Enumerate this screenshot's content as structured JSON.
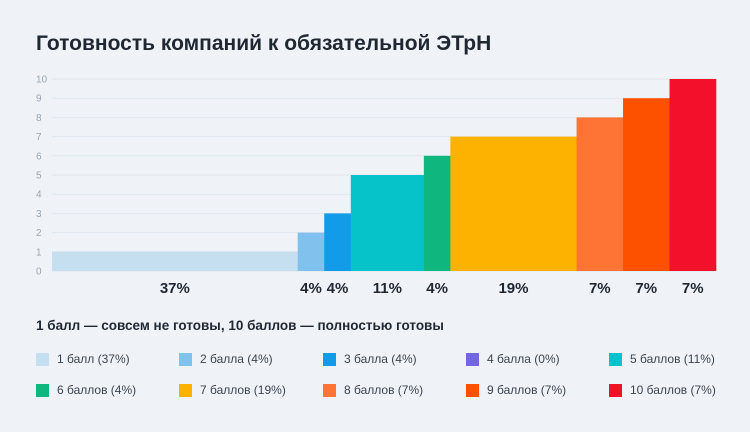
{
  "title": "Готовность компаний к обязательной ЭТрН",
  "note": "1 балл — совсем не готовы, 10 баллов — полностью готовы",
  "chart_data": {
    "type": "bar",
    "subtype": "variable-width (marimekko) bars",
    "ylim": [
      0,
      10
    ],
    "yticks": [
      "0",
      "1",
      "2",
      "3",
      "4",
      "5",
      "6",
      "7",
      "8",
      "9",
      "10"
    ],
    "grid": true,
    "legend_position": "bottom",
    "bars": [
      {
        "score": 1,
        "share": 37,
        "label": "37%",
        "color": "#c5def0"
      },
      {
        "score": 2,
        "share": 4,
        "label": "4%",
        "color": "#80c1ee"
      },
      {
        "score": 3,
        "share": 4,
        "label": "4%",
        "color": "#119be8"
      },
      {
        "score": 4,
        "share": 0,
        "label": "",
        "color": "#7267e0"
      },
      {
        "score": 5,
        "share": 11,
        "label": "11%",
        "color": "#05c3c8"
      },
      {
        "score": 6,
        "share": 4,
        "label": "4%",
        "color": "#0fb77e"
      },
      {
        "score": 7,
        "share": 19,
        "label": "19%",
        "color": "#fdb100"
      },
      {
        "score": 8,
        "share": 7,
        "label": "7%",
        "color": "#fd7434"
      },
      {
        "score": 9,
        "share": 7,
        "label": "7%",
        "color": "#fd5100"
      },
      {
        "score": 10,
        "share": 7,
        "label": "7%",
        "color": "#f2102a"
      }
    ],
    "legend": [
      {
        "label": "1 балл (37%)",
        "color": "#c5def0"
      },
      {
        "label": "2 балла (4%)",
        "color": "#80c1ee"
      },
      {
        "label": "3 балла (4%)",
        "color": "#119be8"
      },
      {
        "label": "4 балла (0%)",
        "color": "#7267e0"
      },
      {
        "label": "5 баллов (11%)",
        "color": "#05c3c8"
      },
      {
        "label": "6 баллов (4%)",
        "color": "#0fb77e"
      },
      {
        "label": "7 баллов (19%)",
        "color": "#fdb100"
      },
      {
        "label": "8 баллов (7%)",
        "color": "#fd7434"
      },
      {
        "label": "9 баллов (7%)",
        "color": "#fd5100"
      },
      {
        "label": "10 баллов (7%)",
        "color": "#f2102a"
      }
    ]
  }
}
